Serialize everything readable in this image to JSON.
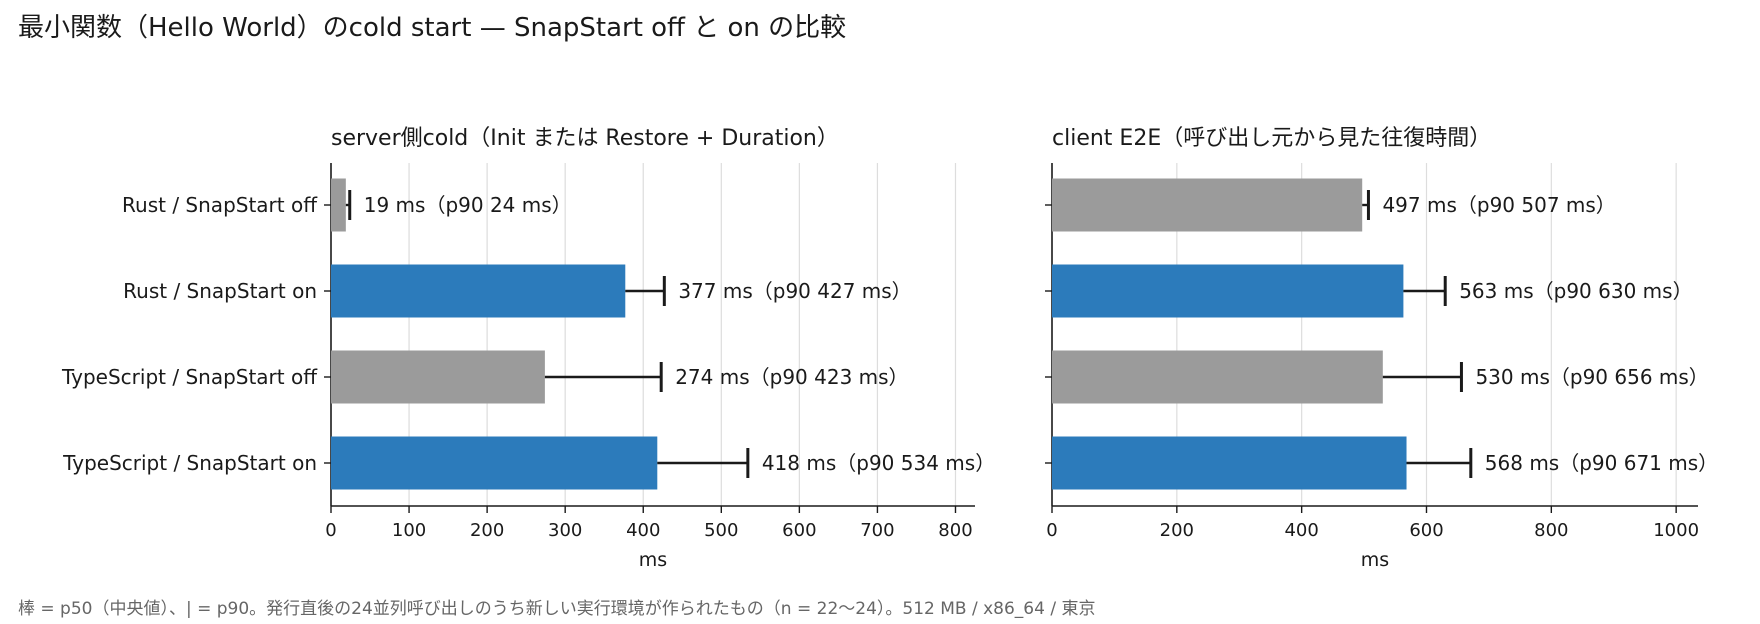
{
  "title": "最小関数（Hello World）のcold start — SnapStart off と on の比較",
  "footnote": "棒 = p50（中央値）、| = p90。発行直後の24並列呼び出しのうち新しい実行環境が作られたもの（n = 22〜24）。512 MB / x86_64 / 東京",
  "colors": {
    "off": "#9b9b9b",
    "on": "#2c7bbb",
    "grid": "#dddddd",
    "axis": "#1a1a1a",
    "whisker": "#1a1a1a"
  },
  "chart_data": [
    {
      "type": "bar",
      "orientation": "horizontal",
      "title": "server側cold（Init または Restore + Duration）",
      "xlabel": "ms",
      "xlim": [
        0,
        825
      ],
      "xticks": [
        0,
        100,
        200,
        300,
        400,
        500,
        600,
        700,
        800
      ],
      "grid": "vertical",
      "categories": [
        "Rust / SnapStart off",
        "Rust / SnapStart on",
        "TypeScript / SnapStart off",
        "TypeScript / SnapStart on"
      ],
      "snapstart": [
        "off",
        "on",
        "off",
        "on"
      ],
      "p50": [
        19,
        377,
        274,
        418
      ],
      "p90": [
        24,
        427,
        423,
        534
      ],
      "labels": [
        "19 ms（p90 24 ms）",
        "377 ms（p90 427 ms）",
        "274 ms（p90 423 ms）",
        "418 ms（p90 534 ms）"
      ]
    },
    {
      "type": "bar",
      "orientation": "horizontal",
      "title": "client E2E（呼び出し元から見た往復時間）",
      "xlabel": "ms",
      "xlim": [
        0,
        1035
      ],
      "xticks": [
        0,
        200,
        400,
        600,
        800,
        1000
      ],
      "grid": "vertical",
      "categories": [
        "Rust / SnapStart off",
        "Rust / SnapStart on",
        "TypeScript / SnapStart off",
        "TypeScript / SnapStart on"
      ],
      "snapstart": [
        "off",
        "on",
        "off",
        "on"
      ],
      "p50": [
        497,
        563,
        530,
        568
      ],
      "p90": [
        507,
        630,
        656,
        671
      ],
      "labels": [
        "497 ms（p90 507 ms）",
        "563 ms（p90 630 ms）",
        "530 ms（p90 656 ms）",
        "568 ms（p90 671 ms）"
      ]
    }
  ]
}
